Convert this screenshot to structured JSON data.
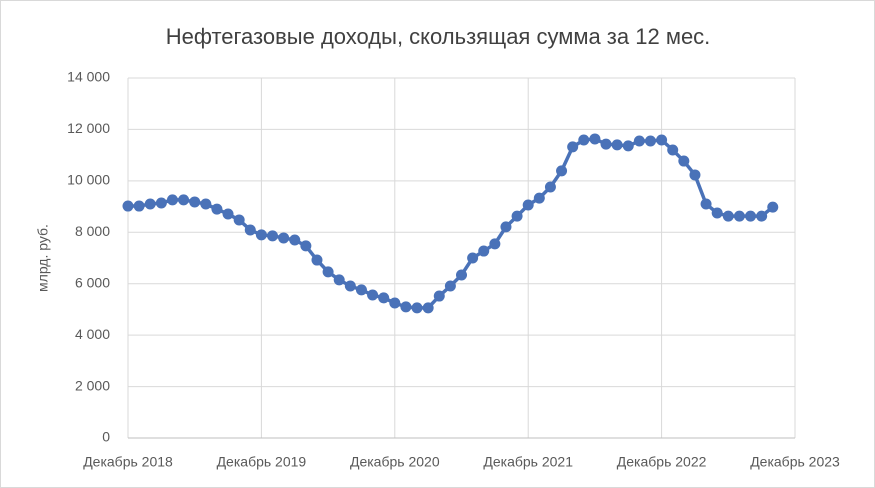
{
  "chart_data": {
    "type": "line",
    "title": "Нефтегазовые доходы, скользящая сумма за 12 мес.",
    "y_label": "млрд. руб.",
    "categories": [
      "Декабрь 2018",
      null,
      null,
      null,
      null,
      null,
      null,
      null,
      null,
      null,
      null,
      null,
      "Декабрь 2019",
      null,
      null,
      null,
      null,
      null,
      null,
      null,
      null,
      null,
      null,
      null,
      "Декабрь 2020",
      null,
      null,
      null,
      null,
      null,
      null,
      null,
      null,
      null,
      null,
      null,
      "Декабрь 2021",
      null,
      null,
      null,
      null,
      null,
      null,
      null,
      null,
      null,
      null,
      null,
      "Декабрь 2022",
      null,
      null,
      null,
      null,
      null,
      null,
      null,
      null,
      null,
      null,
      null,
      "Декабрь 2023"
    ],
    "series": [
      {
        "name": "Нефтегазовые доходы",
        "color": "#4a72b8",
        "values": [
          9020,
          9020,
          9100,
          9140,
          9260,
          9260,
          9180,
          9100,
          8900,
          8710,
          8480,
          8090,
          7900,
          7860,
          7780,
          7700,
          7470,
          6920,
          6460,
          6150,
          5910,
          5760,
          5560,
          5450,
          5250,
          5100,
          5060,
          5060,
          5520,
          5910,
          6340,
          7000,
          7270,
          7550,
          8210,
          8630,
          9060,
          9330,
          9760,
          10390,
          11320,
          11590,
          11630,
          11430,
          11400,
          11360,
          11550,
          11550,
          11590,
          11200,
          10770,
          10230,
          9100,
          8750,
          8630,
          8630,
          8630,
          8630,
          8980,
          null,
          null
        ]
      }
    ],
    "ylim": [
      0,
      14000
    ],
    "yticks": [
      0,
      {
        "value": 2000,
        "label": "2 000"
      },
      {
        "value": 4000,
        "label": "4 000"
      },
      {
        "value": 6000,
        "label": "6 000"
      },
      {
        "value": 8000,
        "label": "8 000"
      },
      {
        "value": 10000,
        "label": "10 000"
      },
      {
        "value": 12000,
        "label": "12 000"
      },
      {
        "value": 14000,
        "label": "14 000"
      }
    ],
    "grid": true
  }
}
